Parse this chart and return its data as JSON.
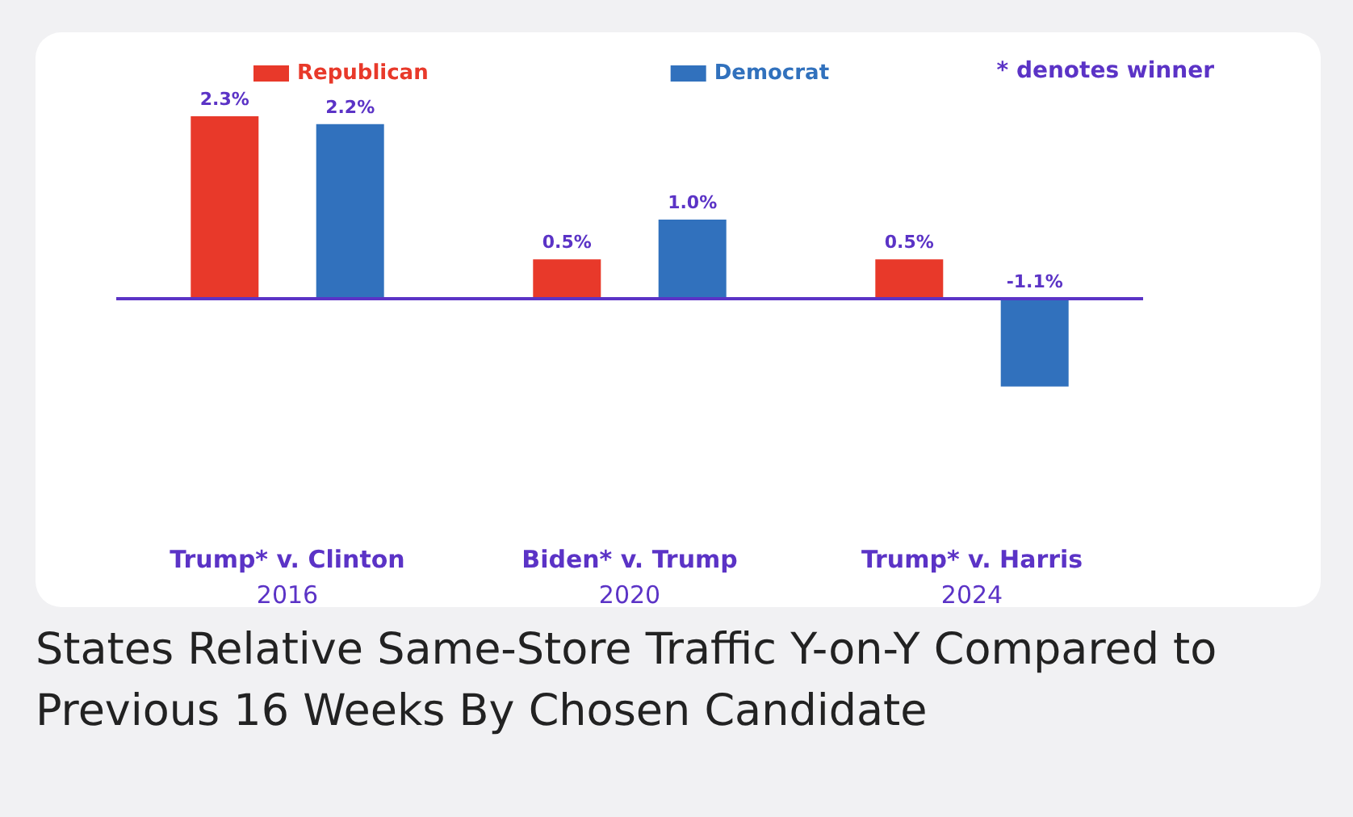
{
  "chart_data": {
    "type": "bar",
    "title": "States Relative Same-Store Traffic Y-on-Y Compared to Previous 16 Weeks By Chosen Candidate",
    "categories": [
      "Trump* v. Clinton\n2016",
      "Biden* v. Trump\n2020",
      "Trump* v. Harris\n2024"
    ],
    "series": [
      {
        "name": "Republican",
        "color": "#e8392a",
        "values": [
          2.3,
          0.5,
          0.5
        ],
        "value_labels": [
          "2.3%",
          "0.5%",
          "0.5%"
        ]
      },
      {
        "name": "Democrat",
        "color": "#3171bd",
        "values": [
          2.2,
          1.0,
          -1.1
        ],
        "value_labels": [
          "2.2%",
          "1.0%",
          "-1.1%"
        ]
      }
    ],
    "annotations": [
      "* denotes winner"
    ],
    "ref_lines": [
      {
        "axis": "y",
        "value": 0,
        "color": "#5b33c6"
      }
    ],
    "legend": "top",
    "grid": false,
    "tick_labels": "x"
  }
}
